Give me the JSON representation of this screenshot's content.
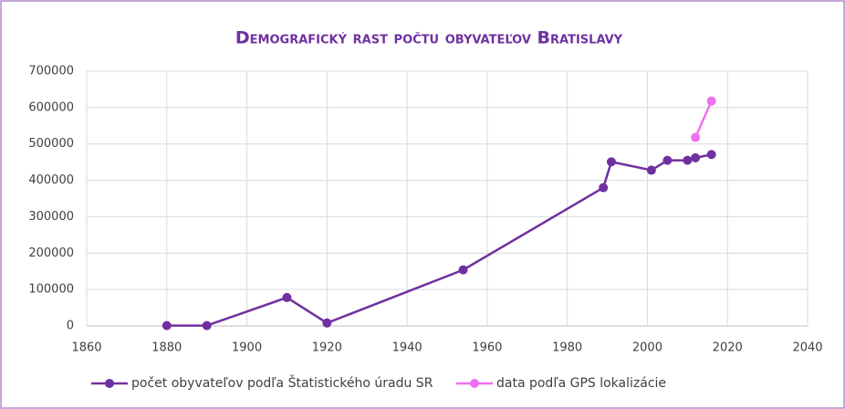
{
  "chart_data": {
    "type": "line",
    "title": "Demografický rast počtu obyvateľov Bratislavy",
    "series": [
      {
        "name": "počet obyvateľov podľa Štatistického úradu SR",
        "color": "#7030a0",
        "x": [
          1880,
          1890,
          1910,
          1920,
          1954,
          1989,
          1991,
          2001,
          2005,
          2010,
          2012,
          2016
        ],
        "values": [
          1000,
          1000,
          78000,
          8000,
          154000,
          380000,
          451000,
          428000,
          455000,
          455000,
          462000,
          471000
        ]
      },
      {
        "name": "data podľa GPS lokalizácie",
        "color": "#f070f0",
        "x": [
          2012,
          2016
        ],
        "values": [
          518000,
          618000
        ]
      }
    ],
    "xlim": [
      1860,
      2040
    ],
    "xticks": [
      1860,
      1880,
      1900,
      1920,
      1940,
      1960,
      1980,
      2000,
      2020,
      2040
    ],
    "ylim": [
      0,
      700000
    ],
    "yticks": [
      0,
      100000,
      200000,
      300000,
      400000,
      500000,
      600000,
      700000
    ],
    "grid": true,
    "legend": "bottom"
  }
}
